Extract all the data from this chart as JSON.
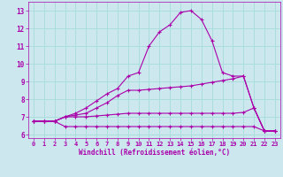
{
  "xlabel": "Windchill (Refroidissement éolien,°C)",
  "background_color": "#cce8ee",
  "line_color": "#aa00aa",
  "grid_color": "#aadddd",
  "xlim": [
    -0.5,
    23.5
  ],
  "ylim": [
    5.8,
    13.5
  ],
  "yticks": [
    6,
    7,
    8,
    9,
    10,
    11,
    12,
    13
  ],
  "xticks": [
    0,
    1,
    2,
    3,
    4,
    5,
    6,
    7,
    8,
    9,
    10,
    11,
    12,
    13,
    14,
    15,
    16,
    17,
    18,
    19,
    20,
    21,
    22,
    23
  ],
  "series": {
    "line1_x": [
      0,
      1,
      2,
      3,
      4,
      5,
      6,
      7,
      8,
      9,
      10,
      11,
      12,
      13,
      14,
      15,
      16,
      17,
      18,
      19,
      20,
      21,
      22,
      23
    ],
    "line1_y": [
      6.75,
      6.75,
      6.75,
      6.45,
      6.45,
      6.45,
      6.45,
      6.45,
      6.45,
      6.45,
      6.45,
      6.45,
      6.45,
      6.45,
      6.45,
      6.45,
      6.45,
      6.45,
      6.45,
      6.45,
      6.45,
      6.45,
      6.2,
      6.2
    ],
    "line2_x": [
      0,
      1,
      2,
      3,
      4,
      5,
      6,
      7,
      8,
      9,
      10,
      11,
      12,
      13,
      14,
      15,
      16,
      17,
      18,
      19,
      20,
      21,
      22,
      23
    ],
    "line2_y": [
      6.75,
      6.75,
      6.75,
      7.0,
      7.0,
      7.0,
      7.05,
      7.1,
      7.15,
      7.2,
      7.2,
      7.2,
      7.2,
      7.2,
      7.2,
      7.2,
      7.2,
      7.2,
      7.2,
      7.2,
      7.25,
      7.5,
      6.2,
      6.2
    ],
    "line3_x": [
      0,
      1,
      2,
      3,
      4,
      5,
      6,
      7,
      8,
      9,
      10,
      11,
      12,
      13,
      14,
      15,
      16,
      17,
      18,
      19,
      20,
      21,
      22,
      23
    ],
    "line3_y": [
      6.75,
      6.75,
      6.75,
      7.0,
      7.1,
      7.2,
      7.5,
      7.8,
      8.2,
      8.5,
      8.5,
      8.55,
      8.6,
      8.65,
      8.7,
      8.75,
      8.85,
      8.95,
      9.05,
      9.15,
      9.3,
      7.5,
      6.2,
      6.2
    ],
    "line4_x": [
      0,
      1,
      2,
      3,
      4,
      5,
      6,
      7,
      8,
      9,
      10,
      11,
      12,
      13,
      14,
      15,
      16,
      17,
      18,
      19,
      20,
      21,
      22,
      23
    ],
    "line4_y": [
      6.75,
      6.75,
      6.75,
      7.0,
      7.2,
      7.5,
      7.9,
      8.3,
      8.6,
      9.3,
      9.5,
      11.0,
      11.8,
      12.2,
      12.9,
      13.0,
      12.5,
      11.3,
      9.5,
      9.3,
      9.3,
      7.5,
      6.2,
      6.2
    ]
  }
}
